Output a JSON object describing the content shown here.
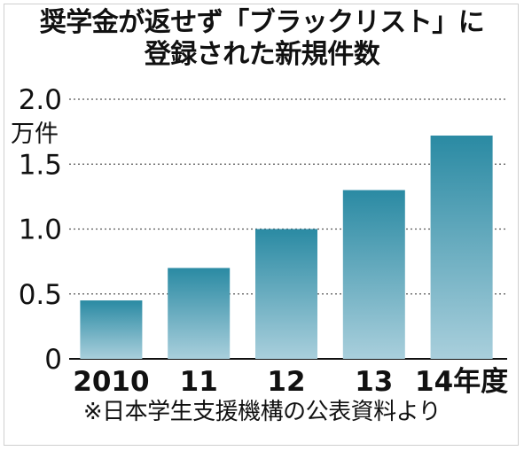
{
  "chart_data": {
    "type": "bar",
    "title": [
      "奨学金が返せず「ブラックリスト」に",
      "登録された新規件数"
    ],
    "unit_label": "万件",
    "categories": [
      "2010",
      "11",
      "12",
      "13",
      "14年度"
    ],
    "values": [
      0.45,
      0.7,
      1.0,
      1.3,
      1.72
    ],
    "ylim": [
      0,
      2.0
    ],
    "yticks": [
      "0",
      "0.5",
      "1.0",
      "1.5",
      "2.0"
    ],
    "grid": true,
    "bar_color_top": "#2a8aa3",
    "bar_color_bottom": "#a9cfdc",
    "source": "※日本学生支援機構の公表資料より"
  }
}
